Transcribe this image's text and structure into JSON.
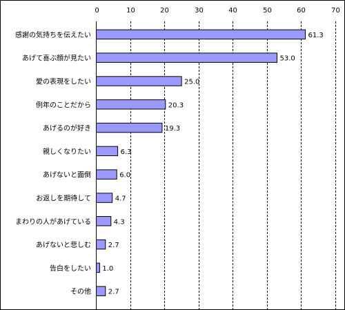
{
  "chart_data": {
    "type": "bar",
    "orientation": "horizontal",
    "categories": [
      "感謝の気持ちを伝えたい",
      "あげて喜ぶ顔が見たい",
      "愛の表現をしたい",
      "例年のことだから",
      "あげるのが好き",
      "親しくなりたい",
      "あげないと面倒",
      "お返しを期待して",
      "まわりの人があげている",
      "あげないと悲しむ",
      "告白をしたい",
      "その他"
    ],
    "values": [
      61.3,
      53.0,
      25.0,
      20.3,
      19.3,
      6.3,
      6.0,
      4.7,
      4.3,
      2.7,
      1.0,
      2.7
    ],
    "value_labels": [
      "61.3",
      "53.0",
      "25.0",
      "20.3",
      "19.3",
      "6.3",
      "6.0",
      "4.7",
      "4.3",
      "2.7",
      "1.0",
      "2.7"
    ],
    "xlim": [
      0,
      70
    ],
    "x_ticks": [
      0,
      10,
      20,
      30,
      40,
      50,
      60,
      70
    ],
    "x_tick_labels": [
      "0",
      "10",
      "20",
      "30",
      "40",
      "50",
      "60",
      "70"
    ],
    "grid": true,
    "legend": "none",
    "bar_color": "#9999ff",
    "title": "",
    "xlabel": "",
    "ylabel": ""
  }
}
